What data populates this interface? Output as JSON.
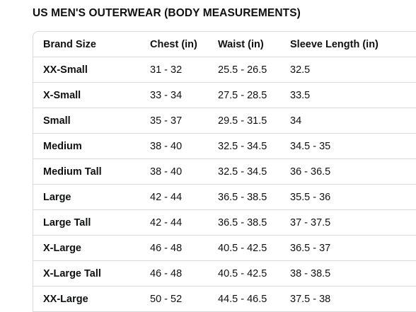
{
  "title": "US MEN'S OUTERWEAR (BODY MEASUREMENTS)",
  "table": {
    "headers": [
      "Brand Size",
      "Chest (in)",
      "Waist (in)",
      "Sleeve Length (in)"
    ],
    "rows": [
      [
        "XX-Small",
        "31 - 32",
        "25.5 - 26.5",
        "32.5"
      ],
      [
        "X-Small",
        "33 - 34",
        "27.5 - 28.5",
        "33.5"
      ],
      [
        "Small",
        "35 - 37",
        "29.5 - 31.5",
        "34"
      ],
      [
        "Medium",
        "38 - 40",
        "32.5 - 34.5",
        "34.5 - 35"
      ],
      [
        "Medium Tall",
        "38 - 40",
        "32.5 - 34.5",
        "36 - 36.5"
      ],
      [
        "Large",
        "42 - 44",
        "36.5 - 38.5",
        "35.5 - 36"
      ],
      [
        "Large Tall",
        "42 - 44",
        "36.5 - 38.5",
        "37 - 37.5"
      ],
      [
        "X-Large",
        "46 - 48",
        "40.5 - 42.5",
        "36.5 - 37"
      ],
      [
        "X-Large Tall",
        "46 - 48",
        "40.5 - 42.5",
        "38 - 38.5"
      ],
      [
        "XX-Large",
        "50 - 52",
        "44.5 - 46.5",
        "37.5 - 38"
      ]
    ]
  },
  "colors": {
    "text": "#0f1111",
    "border": "#d5d9d9",
    "background": "#ffffff"
  }
}
